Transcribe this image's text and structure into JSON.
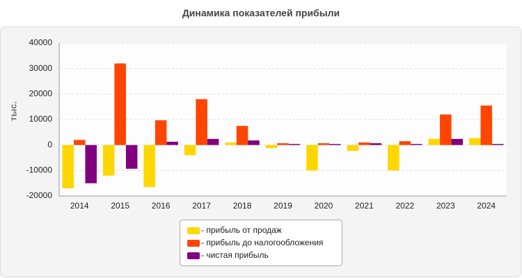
{
  "chart_data": {
    "type": "bar",
    "title": "Динамика показателей прибыли",
    "y_label": "тыс.",
    "categories": [
      "2014",
      "2015",
      "2016",
      "2017",
      "2018",
      "2019",
      "2020",
      "2021",
      "2022",
      "2023",
      "2024"
    ],
    "series": [
      {
        "name": "- прибыль от продаж",
        "color": "#ffd700",
        "values": [
          -17000,
          -12000,
          -16500,
          -4000,
          1000,
          -1200,
          -10000,
          -2300,
          -10000,
          2400,
          2700
        ]
      },
      {
        "name": "- прибыль до налогообложения",
        "color": "#ff4500",
        "values": [
          2000,
          32000,
          9700,
          18000,
          7500,
          700,
          700,
          1000,
          1500,
          12000,
          15500
        ]
      },
      {
        "name": "- чистая прибыль",
        "color": "#800080",
        "values": [
          -15000,
          -9300,
          1300,
          2400,
          1800,
          400,
          400,
          700,
          400,
          2400,
          400
        ]
      }
    ],
    "ylim": [
      -20000,
      40000
    ],
    "yticks": [
      -20000,
      -10000,
      0,
      10000,
      20000,
      30000,
      40000
    ],
    "grid": true
  }
}
